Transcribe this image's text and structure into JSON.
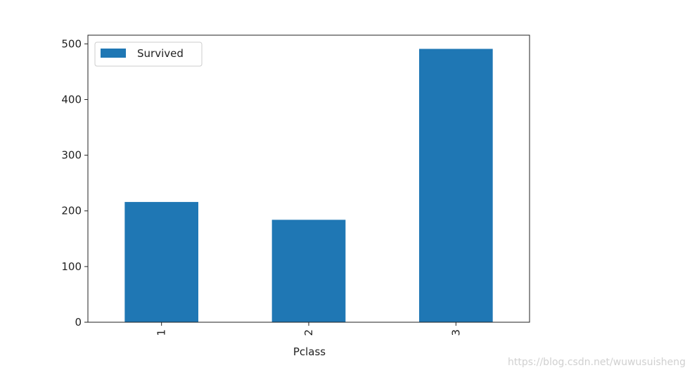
{
  "chart_data": {
    "type": "bar",
    "xlabel": "Pclass",
    "categories": [
      "1",
      "2",
      "3"
    ],
    "series": [
      {
        "name": "Survived",
        "color": "#1f77b4",
        "values": [
          216,
          184,
          491
        ]
      }
    ],
    "ylim": [
      0,
      515.6
    ],
    "yticks": [
      0,
      100,
      200,
      300,
      400,
      500
    ],
    "grid": false,
    "legend": "upper left",
    "x_tick_rotation": 90
  },
  "watermark": "https://blog.csdn.net/wuwusuisheng"
}
